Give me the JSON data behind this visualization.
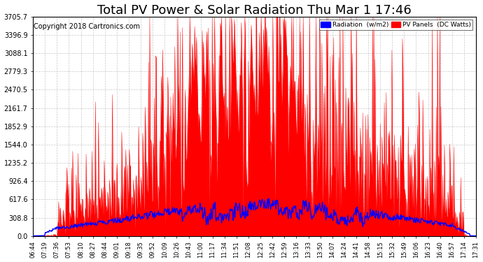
{
  "title": "Total PV Power & Solar Radiation Thu Mar 1 17:46",
  "copyright": "Copyright 2018 Cartronics.com",
  "ymax": 3705.7,
  "ymin": 0.0,
  "yticks": [
    0.0,
    308.8,
    617.6,
    926.4,
    1235.2,
    1544.0,
    1852.9,
    2161.7,
    2470.5,
    2779.3,
    3088.1,
    3396.9,
    3705.7
  ],
  "legend_radiation_label": "Radiation  (w/m2)",
  "legend_pv_label": "PV Panels  (DC Watts)",
  "legend_radiation_color": "#0000ff",
  "legend_pv_color": "#ff0000",
  "background_color": "#ffffff",
  "grid_color": "#bbbbbb",
  "title_fontsize": 13,
  "copyright_fontsize": 7,
  "xtick_labels": [
    "06:44",
    "07:19",
    "07:36",
    "07:53",
    "08:10",
    "08:27",
    "08:44",
    "09:01",
    "09:18",
    "09:35",
    "09:52",
    "10:09",
    "10:26",
    "10:43",
    "11:00",
    "11:17",
    "11:34",
    "11:51",
    "12:08",
    "12:25",
    "12:42",
    "12:59",
    "13:16",
    "13:33",
    "13:50",
    "14:07",
    "14:24",
    "14:41",
    "14:58",
    "15:15",
    "15:32",
    "15:49",
    "16:06",
    "16:23",
    "16:40",
    "16:57",
    "17:14",
    "17:31"
  ]
}
